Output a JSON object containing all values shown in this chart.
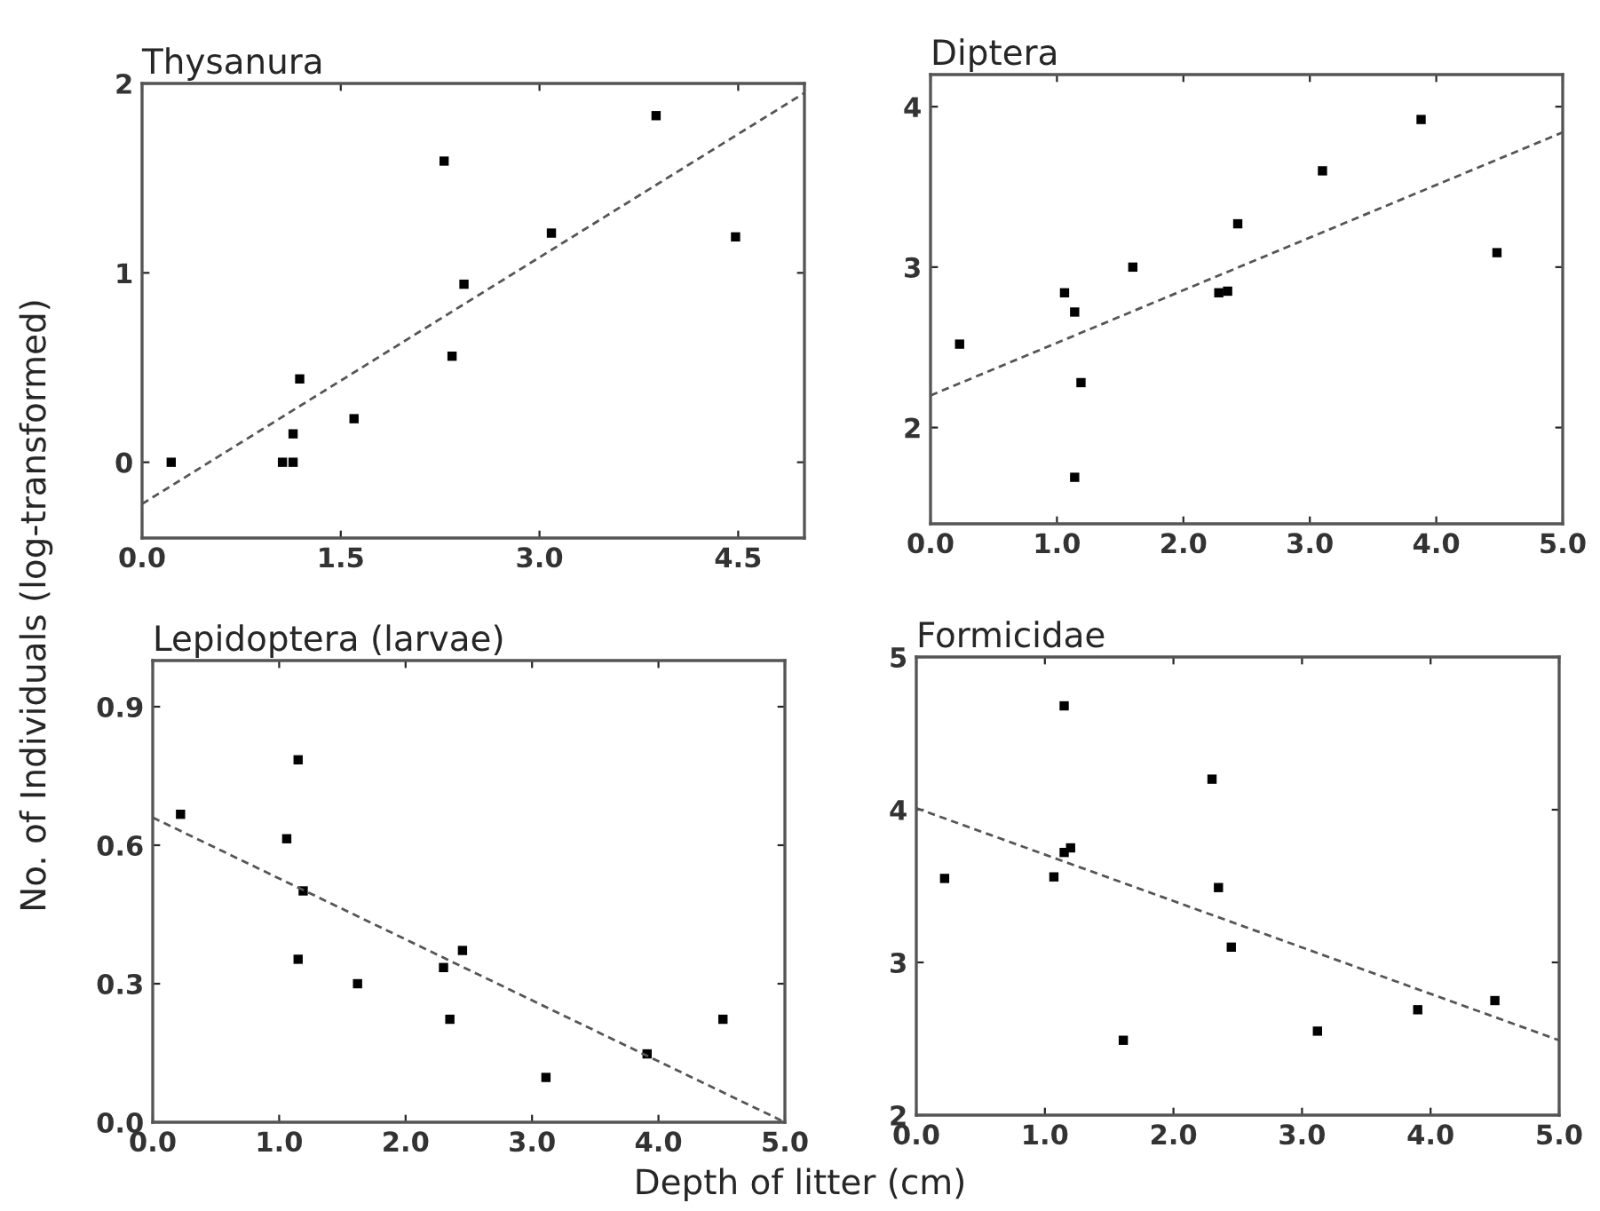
{
  "chart_data": [
    {
      "type": "scatter",
      "title": "Thysanura",
      "ylabel": "No. of Individuals (log-transformed)",
      "xlim": [
        0,
        5
      ],
      "ylim": [
        -0.4,
        2
      ],
      "xticks": [
        {
          "value": 0,
          "label": "0.0"
        },
        {
          "value": 1.5,
          "label": "1.5"
        },
        {
          "value": 3,
          "label": "3.0"
        },
        {
          "value": 4.5,
          "label": "4.5"
        }
      ],
      "yticks": [
        0,
        1,
        2
      ],
      "grid": false,
      "marker": "square",
      "series": [
        {
          "color": "#000000",
          "x": [
            0.22,
            1.06,
            1.14,
            1.14,
            1.19,
            1.6,
            2.28,
            2.34,
            2.43,
            3.09,
            3.88,
            4.48
          ],
          "values": [
            0,
            0,
            0,
            0.15,
            0.44,
            0.23,
            1.59,
            0.56,
            0.94,
            1.21,
            1.83,
            1.19
          ]
        },
        {
          "type": "line",
          "marker": "none",
          "line_style": "dashed",
          "color": "#555555",
          "x": [
            0,
            5
          ],
          "values": [
            -0.22,
            1.95
          ]
        }
      ]
    },
    {
      "type": "scatter",
      "title": "Diptera",
      "xlim": [
        0,
        5
      ],
      "ylim": [
        1.4,
        4.2
      ],
      "xticks": [
        {
          "value": 0,
          "label": "0.0"
        },
        {
          "value": 1,
          "label": "1.0"
        },
        {
          "value": 2,
          "label": "2.0"
        },
        {
          "value": 3,
          "label": "3.0"
        },
        {
          "value": 4,
          "label": "4.0"
        },
        {
          "value": 5,
          "label": "5.0"
        }
      ],
      "yticks": [
        2,
        3,
        4
      ],
      "grid": false,
      "marker": "square",
      "series": [
        {
          "color": "#000000",
          "x": [
            0.23,
            1.06,
            1.14,
            1.19,
            1.14,
            1.6,
            2.28,
            2.35,
            2.43,
            3.1,
            3.88,
            4.48
          ],
          "values": [
            2.52,
            2.84,
            2.72,
            2.28,
            1.69,
            3.0,
            2.84,
            2.85,
            3.27,
            3.6,
            3.92,
            3.09
          ]
        },
        {
          "type": "line",
          "marker": "none",
          "line_style": "dashed",
          "color": "#555555",
          "x": [
            0,
            5
          ],
          "values": [
            2.2,
            3.84
          ]
        }
      ]
    },
    {
      "type": "scatter",
      "title": "Lepidoptera (larvae)",
      "xlabel": "Depth of litter (cm)",
      "xlim": [
        0,
        5
      ],
      "ylim": [
        0,
        1.0
      ],
      "xticks": [
        {
          "value": 0,
          "label": "0.0"
        },
        {
          "value": 1,
          "label": "1.0"
        },
        {
          "value": 2,
          "label": "2.0"
        },
        {
          "value": 3,
          "label": "3.0"
        },
        {
          "value": 4,
          "label": "4.0"
        },
        {
          "value": 5,
          "label": "5.0"
        }
      ],
      "yticks": [
        {
          "value": 0,
          "label": "0.0"
        },
        0.3,
        0.6,
        0.9
      ],
      "grid": false,
      "marker": "square",
      "series": [
        {
          "color": "#000000",
          "x": [
            0.22,
            1.06,
            1.15,
            1.19,
            1.15,
            1.62,
            2.3,
            2.35,
            2.45,
            3.11,
            3.91,
            4.51
          ],
          "values": [
            0.667,
            0.614,
            0.785,
            0.501,
            0.353,
            0.3,
            0.335,
            0.223,
            0.372,
            0.097,
            0.148,
            0.223
          ]
        },
        {
          "type": "line",
          "marker": "none",
          "line_style": "dashed",
          "color": "#555555",
          "x": [
            0,
            5
          ],
          "values": [
            0.66,
            0
          ]
        }
      ]
    },
    {
      "type": "scatter",
      "title": "Formicidae",
      "xlim": [
        0,
        5
      ],
      "ylim": [
        2,
        5
      ],
      "xticks": [
        {
          "value": 0,
          "label": "0.0"
        },
        {
          "value": 1,
          "label": "1.0"
        },
        {
          "value": 2,
          "label": "2.0"
        },
        {
          "value": 3,
          "label": "3.0"
        },
        {
          "value": 4,
          "label": "4.0"
        },
        {
          "value": 5,
          "label": "5.0"
        }
      ],
      "yticks": [
        2,
        3,
        4,
        5
      ],
      "grid": false,
      "marker": "square",
      "series": [
        {
          "color": "#000000",
          "x": [
            0.22,
            1.07,
            1.15,
            1.2,
            1.15,
            1.61,
            2.3,
            2.35,
            2.45,
            3.12,
            3.9,
            4.5
          ],
          "values": [
            3.55,
            3.56,
            3.72,
            3.75,
            4.68,
            2.49,
            4.2,
            3.49,
            3.1,
            2.55,
            2.69,
            2.75
          ]
        },
        {
          "type": "line",
          "marker": "none",
          "line_style": "dashed",
          "color": "#555555",
          "x": [
            0,
            5
          ],
          "values": [
            4.01,
            2.49
          ]
        }
      ]
    }
  ]
}
